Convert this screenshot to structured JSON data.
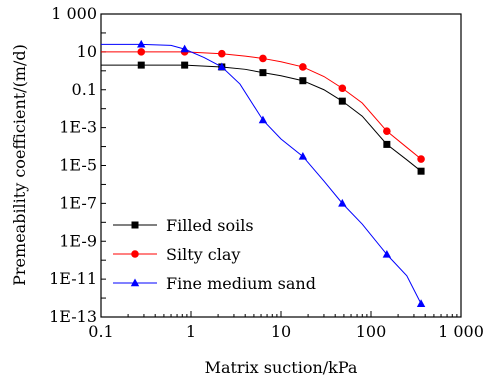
{
  "chart_data": {
    "type": "line",
    "xlabel": "Matrix suction/kPa",
    "ylabel": "Premeability coefficient/(m/d)",
    "xscale": "log",
    "yscale": "log",
    "xlim": [
      0.1,
      1000
    ],
    "ylim": [
      1e-13,
      1000
    ],
    "x_ticks": [
      {
        "value": 0.1,
        "label": "0.1"
      },
      {
        "value": 1,
        "label": "1"
      },
      {
        "value": 10,
        "label": "10"
      },
      {
        "value": 100,
        "label": "100"
      },
      {
        "value": 1000,
        "label": "1 000"
      }
    ],
    "y_ticks": [
      {
        "value": 1000,
        "label": "1 000"
      },
      {
        "value": 10,
        "label": "10"
      },
      {
        "value": 0.1,
        "label": "0.1"
      },
      {
        "value": 0.001,
        "label": "1E-3"
      },
      {
        "value": 1e-05,
        "label": "1E-5"
      },
      {
        "value": 1e-07,
        "label": "1E-7"
      },
      {
        "value": 1e-09,
        "label": "1E-9"
      },
      {
        "value": 1e-11,
        "label": "1E-11"
      },
      {
        "value": 1e-13,
        "label": "1E-13"
      }
    ],
    "grid": false,
    "legend_position": "bottom-left",
    "series": [
      {
        "name": "Filled soils",
        "color": "#000000",
        "marker": "square",
        "x": [
          0.28,
          0.85,
          2.2,
          6.3,
          17.5,
          48,
          150,
          360
        ],
        "y": [
          2.0,
          2.0,
          1.6,
          0.8,
          0.3,
          0.025,
          0.00013,
          5e-06
        ],
        "curve_x": [
          0.1,
          0.28,
          0.85,
          2.2,
          4,
          6.3,
          10,
          17.5,
          30,
          48,
          80,
          150,
          250,
          360
        ],
        "curve_y": [
          2.0,
          2.0,
          2.0,
          1.6,
          1.2,
          0.8,
          0.55,
          0.3,
          0.1,
          0.025,
          0.004,
          0.00013,
          2e-05,
          5e-06
        ]
      },
      {
        "name": "Silty clay",
        "color": "#ff0000",
        "marker": "circle",
        "x": [
          0.28,
          0.85,
          2.2,
          6.3,
          17.5,
          48,
          150,
          360
        ],
        "y": [
          10,
          10,
          8,
          4.5,
          1.6,
          0.12,
          0.00065,
          2.2e-05
        ],
        "curve_x": [
          0.1,
          0.28,
          0.85,
          2.2,
          4,
          6.3,
          10,
          17.5,
          30,
          48,
          80,
          150,
          250,
          360
        ],
        "curve_y": [
          10,
          10,
          10,
          8,
          6,
          4.5,
          3,
          1.6,
          0.5,
          0.12,
          0.02,
          0.00065,
          9e-05,
          2.2e-05
        ]
      },
      {
        "name": "Fine medium sand",
        "color": "#0000ff",
        "marker": "triangle",
        "x": [
          0.28,
          0.85,
          2.2,
          6.3,
          17.5,
          48,
          150,
          360
        ],
        "y": [
          25,
          14,
          1.6,
          0.0025,
          3e-05,
          1e-07,
          2e-10,
          5e-13
        ],
        "curve_x": [
          0.1,
          0.28,
          0.6,
          0.85,
          1.4,
          2.2,
          3.5,
          6.3,
          10,
          17.5,
          30,
          48,
          80,
          150,
          250,
          360
        ],
        "curve_y": [
          25,
          25,
          22,
          14,
          5,
          1.6,
          0.2,
          0.0025,
          0.00025,
          3e-05,
          1.5e-06,
          1e-07,
          8e-09,
          2e-10,
          1.5e-11,
          5e-13
        ]
      }
    ]
  }
}
